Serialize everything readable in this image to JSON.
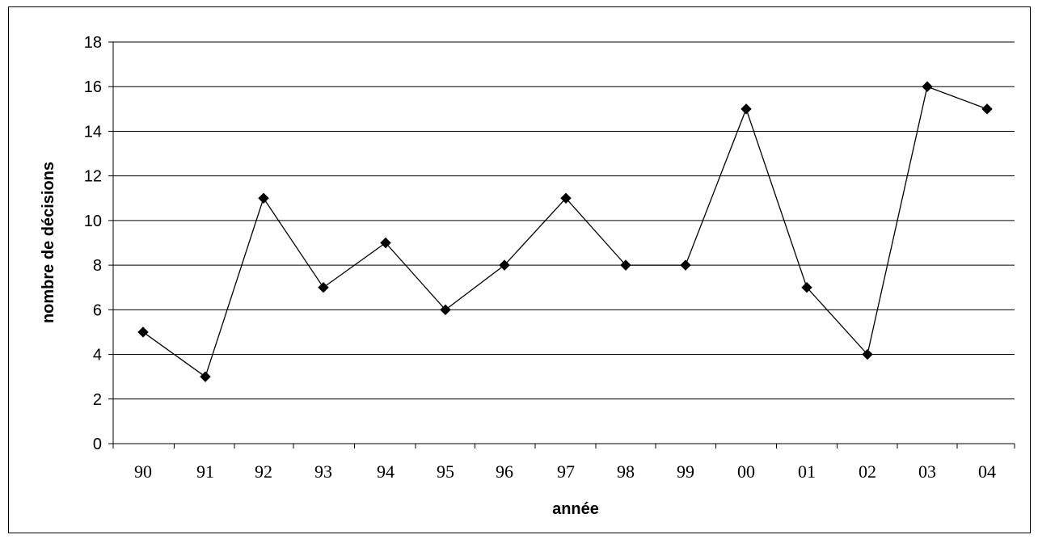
{
  "chart_data": {
    "type": "line",
    "xlabel": "année",
    "ylabel": "nombre de décisions",
    "categories": [
      "90",
      "91",
      "92",
      "93",
      "94",
      "95",
      "96",
      "97",
      "98",
      "99",
      "00",
      "01",
      "02",
      "03",
      "04"
    ],
    "values": [
      5,
      3,
      11,
      7,
      9,
      6,
      8,
      11,
      8,
      8,
      15,
      7,
      4,
      16,
      15
    ],
    "ylim": [
      0,
      18
    ],
    "yticks": [
      0,
      2,
      4,
      6,
      8,
      10,
      12,
      14,
      16,
      18
    ],
    "grid": "horizontal",
    "legend": "none",
    "line_color": "#000000",
    "marker": "diamond"
  }
}
